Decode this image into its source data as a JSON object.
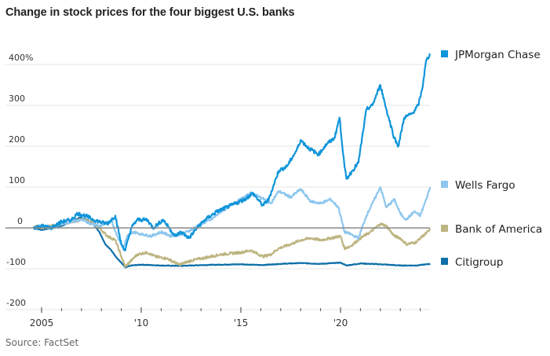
{
  "title": "Change in stock prices for the four biggest U.S. banks",
  "source": "Source: FactSet",
  "chart_data": {
    "type": "line",
    "title": "Change in stock prices for the four biggest U.S. banks",
    "xlabel": "",
    "ylabel": "",
    "xlim": [
      2004.1,
      2024.9
    ],
    "ylim": [
      -200,
      400
    ],
    "grid": true,
    "legend": "right",
    "y_ticks": [
      {
        "value": 400,
        "label": "400%"
      },
      {
        "value": 300,
        "label": "300"
      },
      {
        "value": 200,
        "label": "200"
      },
      {
        "value": 100,
        "label": "100"
      },
      {
        "value": 0,
        "label": "0"
      },
      {
        "value": -100,
        "label": "-100"
      },
      {
        "value": -200,
        "label": "-200"
      }
    ],
    "x_ticks": [
      {
        "value": 2005,
        "label": "2005"
      },
      {
        "value": 2010,
        "label": "'10"
      },
      {
        "value": 2015,
        "label": "'15"
      },
      {
        "value": 2020,
        "label": "'20"
      }
    ],
    "x_minor_ticks": [
      2006,
      2007,
      2008,
      2009,
      2011,
      2012,
      2013,
      2014,
      2016,
      2017,
      2018,
      2019,
      2021,
      2022,
      2023,
      2024
    ],
    "series": [
      {
        "name": "Citigroup",
        "color": "#0d6fa8",
        "legend_value": -90,
        "x": [
          2004.6,
          2005.0,
          2005.5,
          2006.0,
          2006.5,
          2006.9,
          2007.3,
          2007.6,
          2007.9,
          2008.2,
          2008.5,
          2008.8,
          2009.0,
          2009.2,
          2009.5,
          2010.0,
          2011.0,
          2012.0,
          2013.0,
          2014.0,
          2015.0,
          2016.0,
          2017.0,
          2018.0,
          2019.0,
          2020.0,
          2020.3,
          2021.0,
          2022.0,
          2023.0,
          2023.8,
          2024.5
        ],
        "y": [
          0,
          -5,
          0,
          5,
          15,
          25,
          20,
          10,
          -10,
          -40,
          -55,
          -75,
          -85,
          -97,
          -92,
          -90,
          -92,
          -93,
          -91,
          -90,
          -89,
          -91,
          -88,
          -86,
          -88,
          -85,
          -92,
          -87,
          -89,
          -92,
          -92,
          -88
        ]
      },
      {
        "name": "Bank of America",
        "color": "#bdb581",
        "legend_value": -5,
        "x": [
          2004.6,
          2005.0,
          2005.5,
          2006.0,
          2006.5,
          2007.0,
          2007.5,
          2007.9,
          2008.3,
          2008.7,
          2009.0,
          2009.2,
          2009.5,
          2009.8,
          2010.3,
          2010.7,
          2011.3,
          2011.9,
          2012.5,
          2013.0,
          2014.0,
          2015.0,
          2015.5,
          2016.1,
          2016.5,
          2016.9,
          2017.5,
          2018.0,
          2018.5,
          2019.0,
          2019.5,
          2020.0,
          2020.2,
          2020.5,
          2021.0,
          2021.5,
          2022.0,
          2022.3,
          2022.7,
          2023.0,
          2023.3,
          2023.8,
          2024.0,
          2024.5
        ],
        "y": [
          5,
          0,
          5,
          10,
          15,
          20,
          15,
          0,
          -20,
          -30,
          -70,
          -95,
          -80,
          -65,
          -60,
          -70,
          -75,
          -90,
          -80,
          -75,
          -65,
          -60,
          -55,
          -70,
          -65,
          -50,
          -40,
          -30,
          -25,
          -30,
          -25,
          -20,
          -50,
          -45,
          -25,
          -10,
          10,
          5,
          -20,
          -25,
          -40,
          -35,
          -25,
          -5
        ]
      },
      {
        "name": "Wells Fargo",
        "color": "#8dc6ee",
        "legend_value": 100,
        "x": [
          2004.6,
          2005.0,
          2005.5,
          2006.0,
          2006.5,
          2007.0,
          2007.5,
          2008.0,
          2008.5,
          2008.8,
          2009.1,
          2009.3,
          2009.6,
          2010.0,
          2010.5,
          2011.0,
          2011.5,
          2012.0,
          2012.5,
          2013.0,
          2013.5,
          2014.0,
          2014.5,
          2015.0,
          2015.5,
          2016.0,
          2016.5,
          2016.9,
          2017.5,
          2018.0,
          2018.5,
          2019.0,
          2019.5,
          2019.9,
          2020.2,
          2020.5,
          2020.9,
          2021.3,
          2021.6,
          2022.0,
          2022.3,
          2022.7,
          2023.0,
          2023.3,
          2023.7,
          2024.0,
          2024.3,
          2024.5
        ],
        "y": [
          0,
          5,
          0,
          10,
          15,
          20,
          10,
          5,
          20,
          -20,
          -50,
          -20,
          -10,
          -15,
          -20,
          -10,
          -20,
          -15,
          -5,
          10,
          20,
          40,
          55,
          70,
          85,
          75,
          60,
          90,
          75,
          95,
          65,
          60,
          70,
          50,
          -10,
          -15,
          -25,
          30,
          60,
          100,
          50,
          70,
          35,
          20,
          40,
          30,
          70,
          100
        ]
      },
      {
        "name": "JPMorgan Chase",
        "color": "#0f95da",
        "legend_value": 425,
        "x": [
          2004.6,
          2005.0,
          2005.5,
          2006.0,
          2006.5,
          2006.8,
          2007.2,
          2007.6,
          2007.9,
          2008.3,
          2008.7,
          2009.0,
          2009.2,
          2009.5,
          2009.8,
          2010.3,
          2010.6,
          2011.1,
          2011.7,
          2012.0,
          2012.4,
          2012.8,
          2013.2,
          2013.8,
          2014.5,
          2015.2,
          2015.6,
          2016.1,
          2016.4,
          2016.9,
          2017.3,
          2017.8,
          2018.0,
          2018.4,
          2018.9,
          2019.3,
          2019.7,
          2019.95,
          2020.2,
          2020.3,
          2020.6,
          2020.9,
          2021.3,
          2021.6,
          2022.0,
          2022.3,
          2022.7,
          2022.9,
          2023.2,
          2023.6,
          2023.9,
          2024.1,
          2024.3,
          2024.5
        ],
        "y": [
          0,
          5,
          0,
          15,
          20,
          35,
          30,
          20,
          15,
          10,
          30,
          -40,
          -55,
          0,
          20,
          20,
          0,
          20,
          -20,
          -10,
          -25,
          0,
          20,
          40,
          55,
          70,
          85,
          55,
          70,
          140,
          150,
          190,
          215,
          195,
          180,
          205,
          220,
          270,
          150,
          120,
          140,
          160,
          290,
          300,
          350,
          290,
          220,
          200,
          270,
          280,
          300,
          340,
          410,
          425
        ]
      }
    ]
  }
}
